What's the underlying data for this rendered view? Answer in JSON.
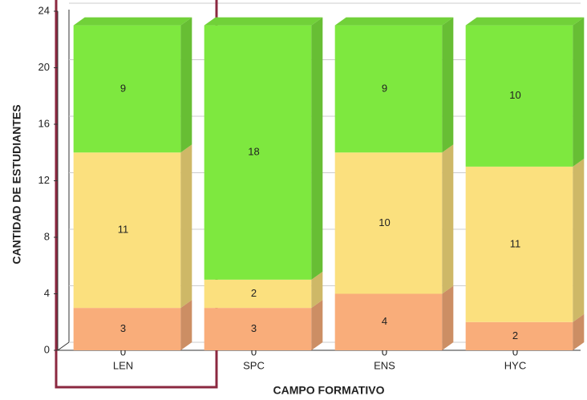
{
  "chart_data": {
    "type": "bar",
    "stacked": true,
    "threeD": true,
    "x_label": "CAMPO FORMATIVO",
    "y_label": "CANTIDAD DE ESTUDIANTES",
    "categories": [
      "LEN",
      "SPC",
      "ENS",
      "HYC"
    ],
    "series": [
      {
        "color": "#f7a36b",
        "values": [
          0,
          0,
          0,
          0
        ]
      },
      {
        "color": "#f9ad7a",
        "values": [
          3,
          3,
          4,
          2
        ]
      },
      {
        "color": "#fbe07e",
        "values": [
          11,
          2,
          10,
          11
        ]
      },
      {
        "color": "#7ee83f",
        "values": [
          9,
          18,
          9,
          10
        ]
      }
    ],
    "ylim": [
      0,
      24
    ],
    "yticks": [
      0,
      4,
      8,
      12,
      16,
      20,
      24
    ],
    "grid": true
  }
}
